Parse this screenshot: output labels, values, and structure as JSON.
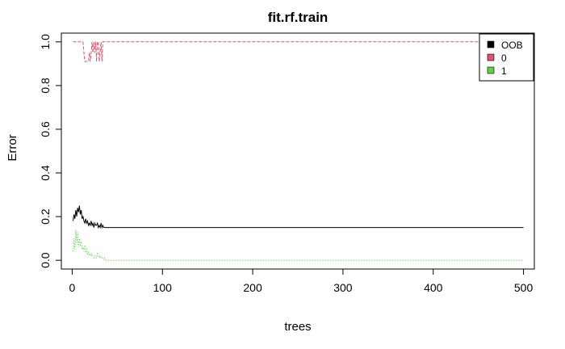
{
  "chart_data": {
    "type": "line",
    "title": "fit.rf.train",
    "xlabel": "trees",
    "ylabel": "Error",
    "xlim": [
      -12,
      512
    ],
    "ylim": [
      -0.04,
      1.04
    ],
    "xticks": [
      0,
      100,
      200,
      300,
      400,
      500
    ],
    "yticks": [
      0.0,
      0.2,
      0.4,
      0.6,
      0.8,
      1.0
    ],
    "xtick_labels": [
      "0",
      "100",
      "200",
      "300",
      "400",
      "500"
    ],
    "ytick_labels": [
      "0.0",
      "0.2",
      "0.4",
      "0.6",
      "0.8",
      "1.0"
    ],
    "grid": false,
    "legend_position": "top-right",
    "series": [
      {
        "name": "OOB",
        "color": "#000000",
        "dash": "solid",
        "x": [
          1,
          2,
          3,
          4,
          5,
          6,
          7,
          8,
          9,
          10,
          11,
          12,
          13,
          14,
          15,
          16,
          17,
          18,
          19,
          20,
          21,
          22,
          23,
          24,
          25,
          26,
          27,
          28,
          29,
          30,
          31,
          32,
          33,
          34,
          35,
          36,
          40,
          60,
          100,
          200,
          300,
          400,
          500
        ],
        "values": [
          0.18,
          0.21,
          0.19,
          0.23,
          0.2,
          0.24,
          0.22,
          0.25,
          0.21,
          0.23,
          0.19,
          0.2,
          0.18,
          0.17,
          0.19,
          0.17,
          0.18,
          0.16,
          0.17,
          0.16,
          0.18,
          0.16,
          0.17,
          0.15,
          0.17,
          0.16,
          0.16,
          0.17,
          0.15,
          0.16,
          0.15,
          0.17,
          0.15,
          0.16,
          0.15,
          0.15,
          0.15,
          0.15,
          0.15,
          0.15,
          0.15,
          0.15,
          0.15
        ]
      },
      {
        "name": "0",
        "color": "#df536b",
        "dash": "dashed",
        "x": [
          1,
          12,
          13,
          14,
          15,
          18,
          19,
          20,
          21,
          22,
          23,
          24,
          25,
          26,
          27,
          28,
          29,
          30,
          31,
          32,
          33,
          34,
          35,
          36,
          60,
          100,
          200,
          300,
          400,
          500
        ],
        "values": [
          1.0,
          1.0,
          0.95,
          0.91,
          0.91,
          0.91,
          0.95,
          0.91,
          0.95,
          1.0,
          0.95,
          1.0,
          0.95,
          1.0,
          0.91,
          1.0,
          1.0,
          0.91,
          0.95,
          1.0,
          0.91,
          1.0,
          1.0,
          1.0,
          1.0,
          1.0,
          1.0,
          1.0,
          1.0,
          1.0
        ]
      },
      {
        "name": "1",
        "color": "#61d04f",
        "dash": "dotted",
        "x": [
          1,
          2,
          3,
          4,
          5,
          6,
          7,
          8,
          9,
          10,
          11,
          12,
          13,
          14,
          15,
          16,
          17,
          18,
          19,
          20,
          21,
          22,
          23,
          24,
          25,
          26,
          27,
          28,
          29,
          30,
          31,
          32,
          33,
          34,
          35,
          36,
          38,
          40,
          60,
          100,
          200,
          300,
          400,
          500
        ],
        "values": [
          0.04,
          0.1,
          0.05,
          0.14,
          0.08,
          0.13,
          0.06,
          0.1,
          0.07,
          0.08,
          0.05,
          0.06,
          0.04,
          0.07,
          0.04,
          0.05,
          0.03,
          0.04,
          0.02,
          0.03,
          0.02,
          0.03,
          0.02,
          0.01,
          0.02,
          0.02,
          0.01,
          0.03,
          0.02,
          0.01,
          0.02,
          0.01,
          0.01,
          0.01,
          0.0,
          0.01,
          0.0,
          0.0,
          0.0,
          0.0,
          0.0,
          0.0,
          0.0,
          0.0
        ]
      }
    ]
  }
}
